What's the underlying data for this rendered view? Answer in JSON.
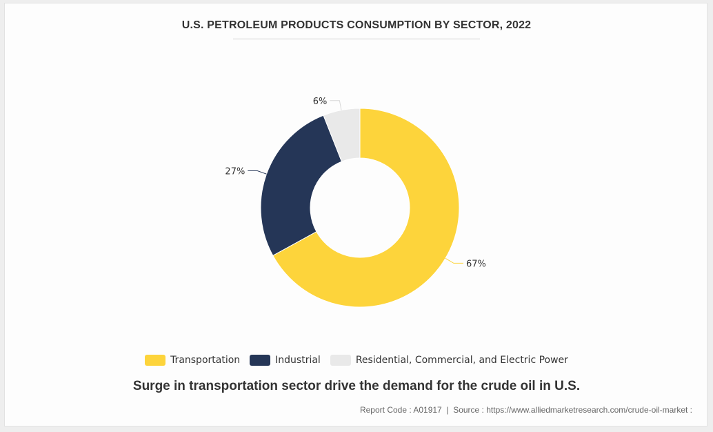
{
  "chart_data": {
    "type": "pie",
    "donut": true,
    "title": "U.S. PETROLEUM PRODUCTS CONSUMPTION BY SECTOR, 2022",
    "categories": [
      "Transportation",
      "Industrial",
      "Residential, Commercial, and Electric Power"
    ],
    "values": [
      67,
      27,
      6
    ],
    "labels": [
      "67%",
      "27%",
      "6%"
    ],
    "colors": [
      "#fdd43b",
      "#253657",
      "#e9e9e9"
    ],
    "legend_position": "bottom"
  },
  "caption": "Surge in transportation sector drive the demand for the crude oil in U.S.",
  "footer": {
    "report_code": "Report Code : A01917",
    "separator": "|",
    "source": "Source : https://www.alliedmarketresearch.com/crude-oil-market :"
  }
}
